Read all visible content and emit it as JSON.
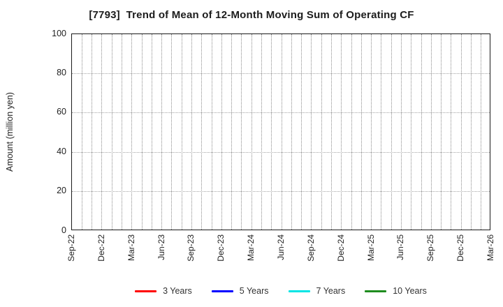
{
  "title": "[7793]  Trend of Mean of 12-Month Moving Sum of Operating CF",
  "chart_data": {
    "type": "line",
    "title": "[7793]  Trend of Mean of 12-Month Moving Sum of Operating CF",
    "xlabel": "",
    "ylabel": "Amount (million yen)",
    "ylim": [
      0,
      100
    ],
    "yticks": [
      0,
      20,
      40,
      60,
      80,
      100
    ],
    "x_tick_labels": [
      "Sep-22",
      "Dec-22",
      "Mar-23",
      "Jun-23",
      "Sep-23",
      "Dec-23",
      "Mar-24",
      "Jun-24",
      "Sep-24",
      "Dec-24",
      "Mar-25",
      "Jun-25",
      "Sep-25",
      "Dec-25",
      "Mar-26"
    ],
    "months_per_tick": 3,
    "total_months": 42,
    "grid": true,
    "grid_style": "dotted",
    "legend_position": "bottom",
    "series": [
      {
        "name": "3 Years",
        "color": "#ff0000",
        "values": []
      },
      {
        "name": "5 Years",
        "color": "#0000ff",
        "values": []
      },
      {
        "name": "7 Years",
        "color": "#00e5e5",
        "values": []
      },
      {
        "name": "10 Years",
        "color": "#1e8c1e",
        "values": []
      }
    ]
  },
  "colors": {
    "frame": "#1a1a1a",
    "grid_vertical": "#8a8a8a",
    "grid_horizontal": "#a2a2a2",
    "text": "#222222"
  }
}
